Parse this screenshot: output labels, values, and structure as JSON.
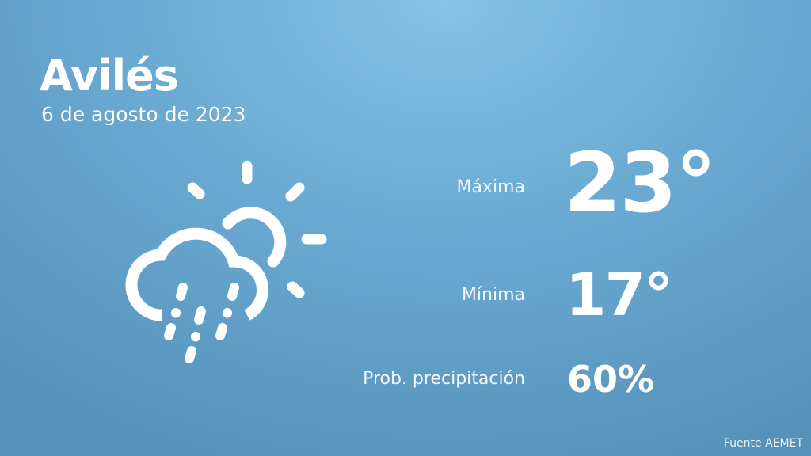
{
  "location": "Avilés",
  "date": "6 de agosto de 2023",
  "weather_icon": "cloud-sun-rain-icon",
  "max": {
    "label": "Máxima",
    "value": "23°"
  },
  "min": {
    "label": "Mínima",
    "value": "17°"
  },
  "precip": {
    "label": "Prob. precipitación",
    "value": "60%"
  },
  "source": "Fuente AEMET",
  "colors": {
    "background_top": "#84c2e6",
    "background_bottom": "#5590b8",
    "text": "#ffffff"
  }
}
